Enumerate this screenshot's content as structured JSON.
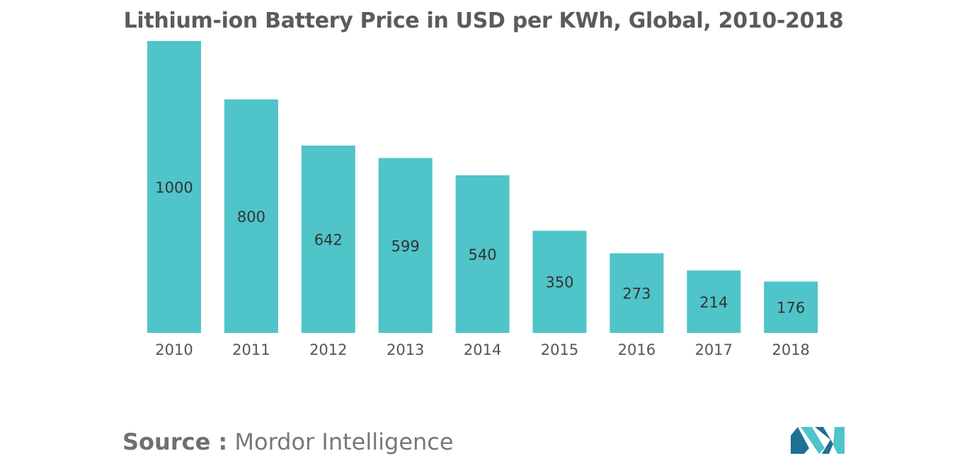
{
  "chart_data": {
    "type": "bar",
    "title": "Lithium-ion Battery Price in USD per KWh, Global, 2010-2018",
    "categories": [
      "2010",
      "2011",
      "2012",
      "2013",
      "2014",
      "2015",
      "2016",
      "2017",
      "2018"
    ],
    "values": [
      1000,
      800,
      642,
      599,
      540,
      350,
      273,
      214,
      176
    ],
    "value_labels": [
      "1000",
      "800",
      "642",
      "599",
      "540",
      "350",
      "273",
      "214",
      "176"
    ],
    "xlabel": "",
    "ylabel": "",
    "ylim": [
      0,
      1000
    ],
    "grid": false,
    "legend": "none"
  },
  "colors": {
    "bar": "#4fc4c9",
    "title": "#5b5b5b",
    "label": "#333333",
    "tick": "#555555",
    "logo_dark": "#1f6f96",
    "logo_light": "#4fc4c9"
  },
  "source": {
    "label": "Source :",
    "text": "Mordor Intelligence"
  },
  "logo": {
    "icon": "mordor-intelligence-logo-icon"
  }
}
